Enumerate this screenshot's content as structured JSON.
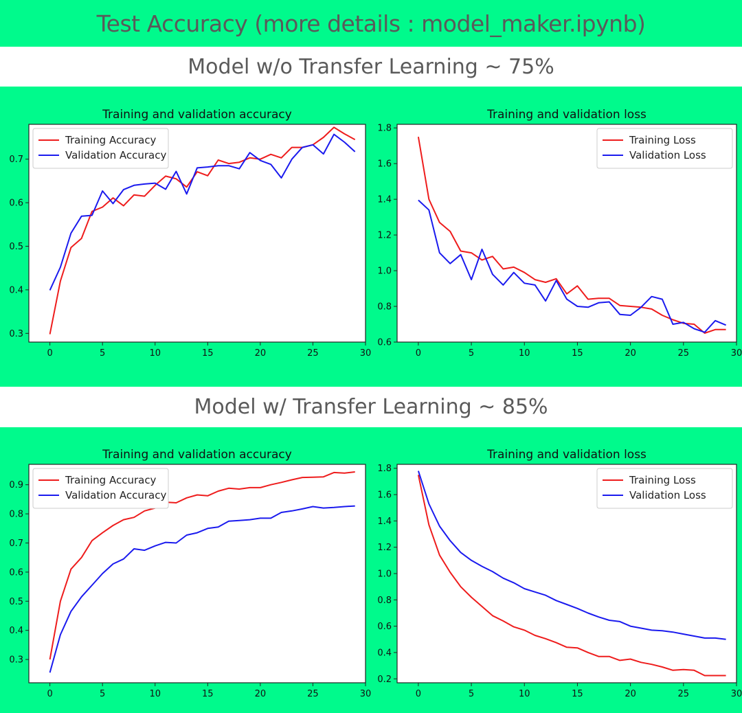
{
  "page": {
    "title": "Test Accuracy  (more details : model_maker.ipynb)",
    "section1_title": "Model w/o Transfer Learning ~ 75%",
    "section2_title": "Model w/ Transfer Learning ~ 85%"
  },
  "colors": {
    "background": "#00fa8c",
    "training": "#ee1c1c",
    "validation": "#1a1aee"
  },
  "chart_data": [
    {
      "type": "line",
      "title": "Training and validation accuracy",
      "xlim": [
        -2,
        30
      ],
      "ylim": [
        0.28,
        0.78
      ],
      "xticks": [
        0,
        5,
        10,
        15,
        20,
        25,
        30
      ],
      "yticks": [
        0.3,
        0.4,
        0.5,
        0.6,
        0.7
      ],
      "legend": "top-left",
      "x": [
        0,
        1,
        2,
        3,
        4,
        5,
        6,
        7,
        8,
        9,
        10,
        11,
        12,
        13,
        14,
        15,
        16,
        17,
        18,
        19,
        20,
        21,
        22,
        23,
        24,
        25,
        26,
        27,
        28,
        29
      ],
      "series": [
        {
          "name": "Training Accuracy",
          "color": "#ee1c1c",
          "values": [
            0.298,
            0.42,
            0.497,
            0.518,
            0.58,
            0.59,
            0.611,
            0.593,
            0.618,
            0.615,
            0.64,
            0.661,
            0.655,
            0.636,
            0.671,
            0.662,
            0.698,
            0.69,
            0.693,
            0.703,
            0.7,
            0.711,
            0.703,
            0.727,
            0.727,
            0.733,
            0.75,
            0.773,
            0.758,
            0.745
          ]
        },
        {
          "name": "Validation Accuracy",
          "color": "#1a1aee",
          "values": [
            0.399,
            0.452,
            0.53,
            0.569,
            0.571,
            0.627,
            0.598,
            0.63,
            0.64,
            0.643,
            0.645,
            0.631,
            0.672,
            0.62,
            0.68,
            0.682,
            0.685,
            0.685,
            0.678,
            0.715,
            0.697,
            0.688,
            0.657,
            0.7,
            0.727,
            0.733,
            0.712,
            0.757,
            0.739,
            0.717
          ]
        }
      ]
    },
    {
      "type": "line",
      "title": "Training and validation loss",
      "xlim": [
        -2,
        30
      ],
      "ylim": [
        0.6,
        1.82
      ],
      "xticks": [
        0,
        5,
        10,
        15,
        20,
        25,
        30
      ],
      "yticks": [
        0.6,
        0.8,
        1.0,
        1.2,
        1.4,
        1.6,
        1.8
      ],
      "legend": "top-right",
      "x": [
        0,
        1,
        2,
        3,
        4,
        5,
        6,
        7,
        8,
        9,
        10,
        11,
        12,
        13,
        14,
        15,
        16,
        17,
        18,
        19,
        20,
        21,
        22,
        23,
        24,
        25,
        26,
        27,
        28,
        29
      ],
      "series": [
        {
          "name": "Training Loss",
          "color": "#ee1c1c",
          "values": [
            1.75,
            1.4,
            1.27,
            1.22,
            1.11,
            1.1,
            1.06,
            1.08,
            1.01,
            1.02,
            0.99,
            0.95,
            0.935,
            0.955,
            0.87,
            0.915,
            0.84,
            0.845,
            0.845,
            0.805,
            0.8,
            0.795,
            0.785,
            0.75,
            0.725,
            0.705,
            0.7,
            0.65,
            0.67,
            0.67
          ]
        },
        {
          "name": "Validation Loss",
          "color": "#1a1aee",
          "values": [
            1.395,
            1.34,
            1.1,
            1.04,
            1.09,
            0.95,
            1.12,
            0.98,
            0.92,
            0.99,
            0.93,
            0.92,
            0.83,
            0.945,
            0.84,
            0.8,
            0.795,
            0.82,
            0.825,
            0.755,
            0.75,
            0.795,
            0.855,
            0.84,
            0.7,
            0.71,
            0.675,
            0.655,
            0.72,
            0.695
          ]
        }
      ]
    },
    {
      "type": "line",
      "title": "Training and validation accuracy",
      "xlim": [
        -2,
        30
      ],
      "ylim": [
        0.22,
        0.97
      ],
      "xticks": [
        0,
        5,
        10,
        15,
        20,
        25,
        30
      ],
      "yticks": [
        0.3,
        0.4,
        0.5,
        0.6,
        0.7,
        0.8,
        0.9
      ],
      "legend": "top-left",
      "x": [
        0,
        1,
        2,
        3,
        4,
        5,
        6,
        7,
        8,
        9,
        10,
        11,
        12,
        13,
        14,
        15,
        16,
        17,
        18,
        19,
        20,
        21,
        22,
        23,
        24,
        25,
        26,
        27,
        28,
        29
      ],
      "series": [
        {
          "name": "Training Accuracy",
          "color": "#ee1c1c",
          "values": [
            0.3,
            0.5,
            0.61,
            0.65,
            0.708,
            0.735,
            0.76,
            0.78,
            0.788,
            0.81,
            0.82,
            0.84,
            0.838,
            0.855,
            0.865,
            0.862,
            0.878,
            0.888,
            0.885,
            0.89,
            0.89,
            0.9,
            0.908,
            0.917,
            0.925,
            0.926,
            0.927,
            0.942,
            0.94,
            0.944
          ]
        },
        {
          "name": "Validation Accuracy",
          "color": "#1a1aee",
          "values": [
            0.255,
            0.385,
            0.465,
            0.515,
            0.555,
            0.595,
            0.628,
            0.645,
            0.68,
            0.675,
            0.69,
            0.702,
            0.7,
            0.727,
            0.735,
            0.75,
            0.755,
            0.775,
            0.777,
            0.78,
            0.785,
            0.785,
            0.805,
            0.81,
            0.817,
            0.825,
            0.82,
            0.822,
            0.825,
            0.827
          ]
        }
      ]
    },
    {
      "type": "line",
      "title": "Training and validation loss",
      "xlim": [
        -2,
        30
      ],
      "ylim": [
        0.17,
        1.83
      ],
      "xticks": [
        0,
        5,
        10,
        15,
        20,
        25,
        30
      ],
      "yticks": [
        0.2,
        0.4,
        0.6,
        0.8,
        1.0,
        1.2,
        1.4,
        1.6,
        1.8
      ],
      "legend": "top-right",
      "x": [
        0,
        1,
        2,
        3,
        4,
        5,
        6,
        7,
        8,
        9,
        10,
        11,
        12,
        13,
        14,
        15,
        16,
        17,
        18,
        19,
        20,
        21,
        22,
        23,
        24,
        25,
        26,
        27,
        28,
        29
      ],
      "series": [
        {
          "name": "Training Loss",
          "color": "#ee1c1c",
          "values": [
            1.75,
            1.37,
            1.14,
            1.01,
            0.9,
            0.82,
            0.75,
            0.68,
            0.64,
            0.595,
            0.57,
            0.53,
            0.505,
            0.475,
            0.44,
            0.435,
            0.4,
            0.37,
            0.37,
            0.34,
            0.35,
            0.325,
            0.31,
            0.29,
            0.265,
            0.27,
            0.265,
            0.225,
            0.225,
            0.225
          ]
        },
        {
          "name": "Validation Loss",
          "color": "#1a1aee",
          "values": [
            1.78,
            1.53,
            1.36,
            1.25,
            1.16,
            1.1,
            1.055,
            1.015,
            0.965,
            0.93,
            0.885,
            0.86,
            0.835,
            0.795,
            0.765,
            0.735,
            0.7,
            0.67,
            0.645,
            0.635,
            0.6,
            0.585,
            0.57,
            0.565,
            0.555,
            0.54,
            0.525,
            0.51,
            0.51,
            0.5
          ]
        }
      ]
    }
  ]
}
